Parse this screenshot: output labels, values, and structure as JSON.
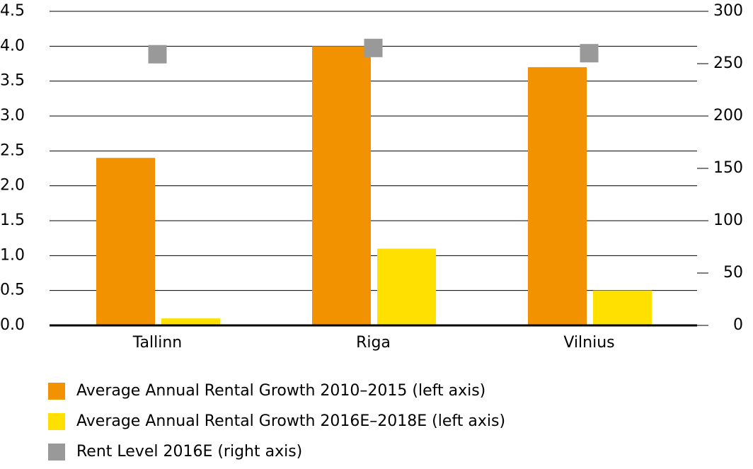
{
  "chart_data": {
    "type": "bar",
    "categories": [
      "Tallinn",
      "Riga",
      "Vilnius"
    ],
    "series": [
      {
        "name": "Average Annual Rental Growth 2010–2015 (left axis)",
        "color": "#f39200",
        "values": [
          2.4,
          4.0,
          3.7
        ]
      },
      {
        "name": "Average Annual Rental Growth 2016E–2018E (left axis)",
        "color": "#ffe000",
        "values": [
          0.1,
          1.1,
          0.5
        ]
      },
      {
        "name": "Rent Level 2016E (right axis)",
        "color": "#999999",
        "values": [
          259,
          265,
          260
        ],
        "axis": "y2",
        "marker": "square"
      }
    ],
    "ylim": [
      0,
      4.5
    ],
    "yticks": [
      {
        "value": 0,
        "label": "0.0"
      },
      0.5,
      {
        "value": 1,
        "label": "1.0"
      },
      1.5,
      {
        "value": 2,
        "label": "2.0"
      },
      2.5,
      {
        "value": 3,
        "label": "3.0"
      },
      3.5,
      {
        "value": 4,
        "label": "4.0"
      },
      4.5
    ],
    "y2lim": [
      0,
      300
    ],
    "y2ticks": [
      0,
      50,
      100,
      150,
      200,
      250,
      300
    ],
    "grid": true,
    "legend": "bottom"
  }
}
